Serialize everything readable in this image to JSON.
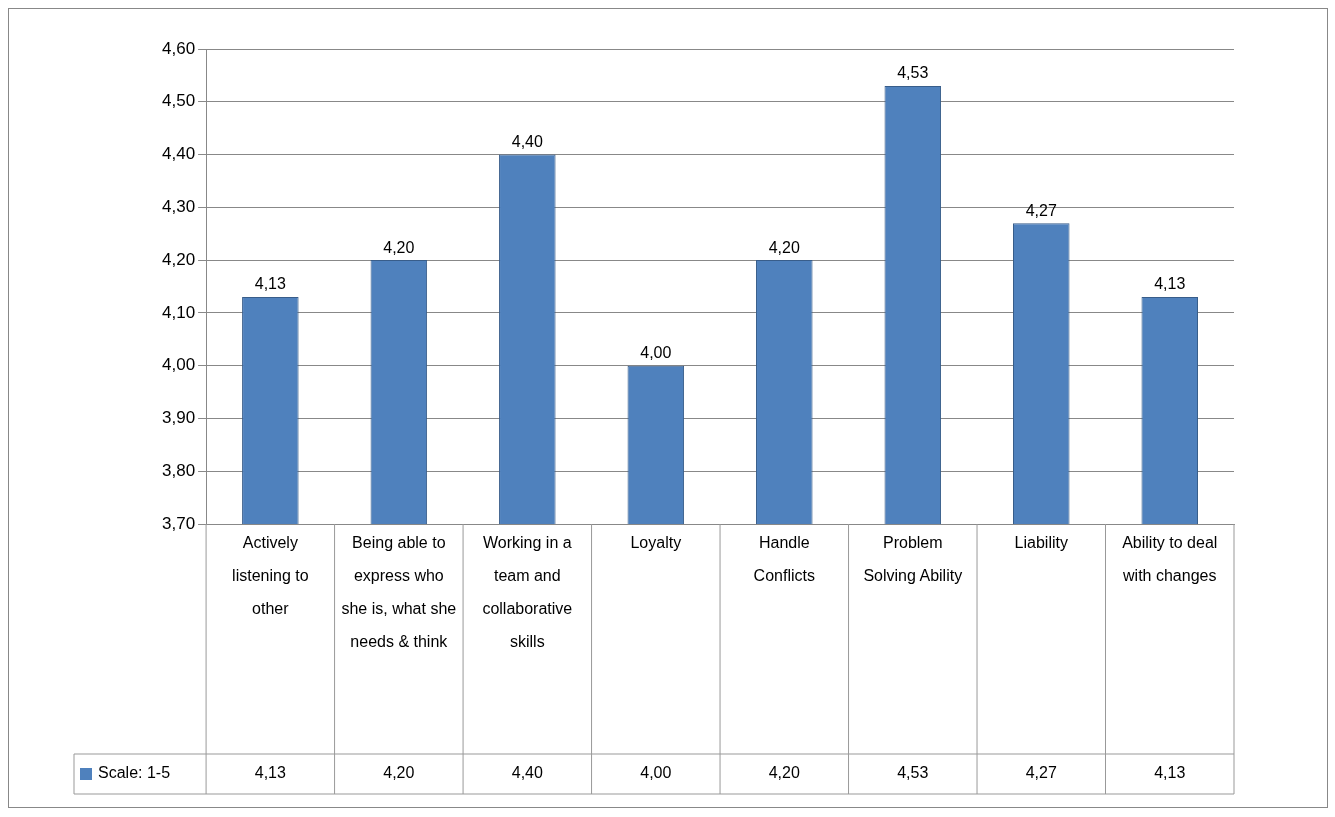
{
  "chart_data": {
    "type": "bar",
    "categories": [
      "Actively listening to other",
      "Being able to express who she is, what she needs & think",
      "Working in a team and collaborative skills",
      "Loyalty",
      "Handle Conflicts",
      "Problem Solving Ability",
      "Liability",
      "Ability to deal with changes"
    ],
    "series": [
      {
        "name": "Scale: 1-5",
        "color": "#4f81bd",
        "values": [
          4.13,
          4.2,
          4.4,
          4.0,
          4.2,
          4.53,
          4.27,
          4.13
        ],
        "value_labels": [
          "4,13",
          "4,20",
          "4,40",
          "4,00",
          "4,20",
          "4,53",
          "4,27",
          "4,13"
        ]
      }
    ],
    "ylim": [
      3.7,
      4.6
    ],
    "yticks": [
      {
        "value": 3.7,
        "label": "3,70"
      },
      {
        "value": 3.8,
        "label": "3,80"
      },
      {
        "value": 3.9,
        "label": "3,90"
      },
      {
        "value": 4.0,
        "label": "4,00"
      },
      {
        "value": 4.1,
        "label": "4,10"
      },
      {
        "value": 4.2,
        "label": "4,20"
      },
      {
        "value": 4.3,
        "label": "4,30"
      },
      {
        "value": 4.4,
        "label": "4,40"
      },
      {
        "value": 4.5,
        "label": "4,50"
      },
      {
        "value": 4.6,
        "label": "4,60"
      }
    ],
    "grid": "y",
    "legend": "bottom"
  }
}
